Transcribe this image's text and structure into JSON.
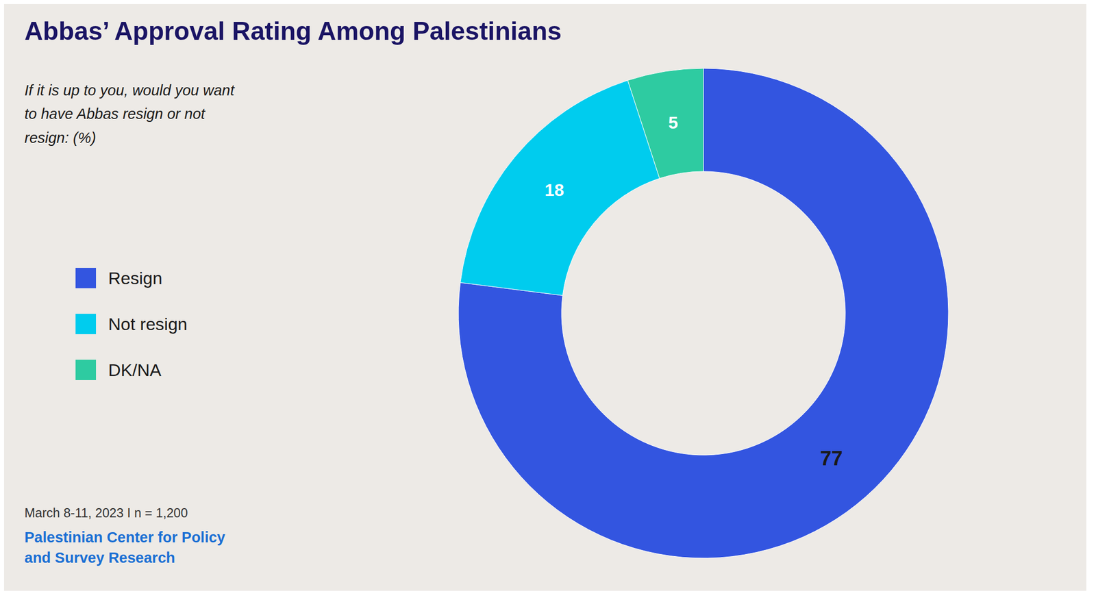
{
  "chart_data": {
    "type": "pie",
    "title": "Abbas’ Approval Rating Among Palestinians",
    "subtitle": "If it is up to you, would you want\nto have Abbas resign or not\nresign: (%)",
    "categories": [
      "Resign",
      "Not resign",
      "DK/NA"
    ],
    "values": [
      77,
      18,
      5
    ],
    "colors": [
      "#3355E0",
      "#00CCEE",
      "#2ECBA1"
    ],
    "data_labels": true,
    "legend": "left",
    "annotations": [
      "March 8-11, 2023 I n = 1,200",
      "Palestinian Center for Policy\nand Survey Research"
    ]
  }
}
